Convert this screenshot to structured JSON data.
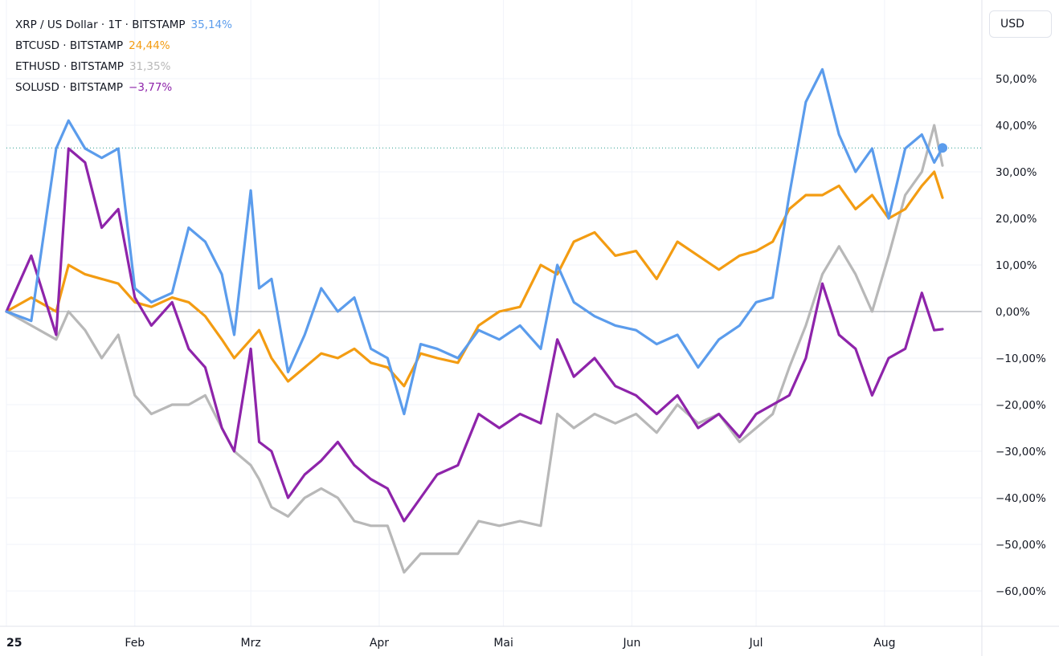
{
  "currency_button": "USD",
  "colors": {
    "xrp": "#5b9cec",
    "btc": "#f39c12",
    "eth": "#b8b8b8",
    "sol": "#8e24aa"
  },
  "legend": [
    {
      "label": "XRP / US Dollar · 1T · BITSTAMP",
      "value": "35,14%"
    },
    {
      "label": "BTCUSD · BITSTAMP",
      "value": "24,44%"
    },
    {
      "label": "ETHUSD · BITSTAMP",
      "value": "31,35%"
    },
    {
      "label": "SOLUSD · BITSTAMP",
      "value": "−3,77%"
    }
  ],
  "chart_data": {
    "type": "line",
    "x_ticks": [
      "25",
      "Feb",
      "Mrz",
      "Apr",
      "Mai",
      "Jun",
      "Jul",
      "Aug"
    ],
    "y_ticks": [
      "50,00%",
      "40,00%",
      "30,00%",
      "20,00%",
      "10,00%",
      "0,00%",
      "−10,00%",
      "−20,00%",
      "−30,00%",
      "−40,00%",
      "−50,00%",
      "−60,00%"
    ],
    "ylim": [
      -65,
      65
    ],
    "y_unit": "%",
    "grid": true,
    "legend_position": "top-left",
    "series": [
      {
        "name": "XRP / US Dollar · 1T · BITSTAMP",
        "x": [
          "2025-01-01",
          "2025-01-07",
          "2025-01-13",
          "2025-01-16",
          "2025-01-20",
          "2025-01-24",
          "2025-01-28",
          "2025-02-01",
          "2025-02-05",
          "2025-02-10",
          "2025-02-14",
          "2025-02-18",
          "2025-02-22",
          "2025-02-25",
          "2025-03-01",
          "2025-03-03",
          "2025-03-06",
          "2025-03-10",
          "2025-03-14",
          "2025-03-18",
          "2025-03-22",
          "2025-03-26",
          "2025-03-30",
          "2025-04-03",
          "2025-04-07",
          "2025-04-11",
          "2025-04-15",
          "2025-04-20",
          "2025-04-25",
          "2025-04-30",
          "2025-05-05",
          "2025-05-10",
          "2025-05-14",
          "2025-05-18",
          "2025-05-23",
          "2025-05-28",
          "2025-06-02",
          "2025-06-07",
          "2025-06-12",
          "2025-06-17",
          "2025-06-22",
          "2025-06-27",
          "2025-07-01",
          "2025-07-05",
          "2025-07-09",
          "2025-07-13",
          "2025-07-17",
          "2025-07-21",
          "2025-07-25",
          "2025-07-29",
          "2025-08-02",
          "2025-08-06",
          "2025-08-10",
          "2025-08-13",
          "2025-08-15"
        ],
        "y": [
          0,
          -2,
          35,
          41,
          35,
          33,
          35,
          5,
          2,
          4,
          18,
          15,
          8,
          -5,
          26,
          5,
          7,
          -13,
          -5,
          5,
          0,
          3,
          -8,
          -10,
          -22,
          -7,
          -8,
          -10,
          -4,
          -6,
          -3,
          -8,
          10,
          2,
          -1,
          -3,
          -4,
          -7,
          -5,
          -12,
          -6,
          -3,
          2,
          3,
          25,
          45,
          52,
          38,
          30,
          35,
          20,
          35,
          38,
          32,
          35.14
        ]
      },
      {
        "name": "BTCUSD · BITSTAMP",
        "x": [
          "2025-01-01",
          "2025-01-07",
          "2025-01-13",
          "2025-01-16",
          "2025-01-20",
          "2025-01-24",
          "2025-01-28",
          "2025-02-01",
          "2025-02-05",
          "2025-02-10",
          "2025-02-14",
          "2025-02-18",
          "2025-02-22",
          "2025-02-25",
          "2025-03-01",
          "2025-03-03",
          "2025-03-06",
          "2025-03-10",
          "2025-03-14",
          "2025-03-18",
          "2025-03-22",
          "2025-03-26",
          "2025-03-30",
          "2025-04-03",
          "2025-04-07",
          "2025-04-11",
          "2025-04-15",
          "2025-04-20",
          "2025-04-25",
          "2025-04-30",
          "2025-05-05",
          "2025-05-10",
          "2025-05-14",
          "2025-05-18",
          "2025-05-23",
          "2025-05-28",
          "2025-06-02",
          "2025-06-07",
          "2025-06-12",
          "2025-06-17",
          "2025-06-22",
          "2025-06-27",
          "2025-07-01",
          "2025-07-05",
          "2025-07-09",
          "2025-07-13",
          "2025-07-17",
          "2025-07-21",
          "2025-07-25",
          "2025-07-29",
          "2025-08-02",
          "2025-08-06",
          "2025-08-10",
          "2025-08-13",
          "2025-08-15"
        ],
        "y": [
          0,
          3,
          0,
          10,
          8,
          7,
          6,
          2,
          1,
          3,
          2,
          -1,
          -6,
          -10,
          -6,
          -4,
          -10,
          -15,
          -12,
          -9,
          -10,
          -8,
          -11,
          -12,
          -16,
          -9,
          -10,
          -11,
          -3,
          0,
          1,
          10,
          8,
          15,
          17,
          12,
          13,
          7,
          15,
          12,
          9,
          12,
          13,
          15,
          22,
          25,
          25,
          27,
          22,
          25,
          20,
          22,
          27,
          30,
          24.44
        ]
      },
      {
        "name": "ETHUSD · BITSTAMP",
        "x": [
          "2025-01-01",
          "2025-01-07",
          "2025-01-13",
          "2025-01-16",
          "2025-01-20",
          "2025-01-24",
          "2025-01-28",
          "2025-02-01",
          "2025-02-05",
          "2025-02-10",
          "2025-02-14",
          "2025-02-18",
          "2025-02-22",
          "2025-02-25",
          "2025-03-01",
          "2025-03-03",
          "2025-03-06",
          "2025-03-10",
          "2025-03-14",
          "2025-03-18",
          "2025-03-22",
          "2025-03-26",
          "2025-03-30",
          "2025-04-03",
          "2025-04-07",
          "2025-04-11",
          "2025-04-15",
          "2025-04-20",
          "2025-04-25",
          "2025-04-30",
          "2025-05-05",
          "2025-05-10",
          "2025-05-14",
          "2025-05-18",
          "2025-05-23",
          "2025-05-28",
          "2025-06-02",
          "2025-06-07",
          "2025-06-12",
          "2025-06-17",
          "2025-06-22",
          "2025-06-27",
          "2025-07-01",
          "2025-07-05",
          "2025-07-09",
          "2025-07-13",
          "2025-07-17",
          "2025-07-21",
          "2025-07-25",
          "2025-07-29",
          "2025-08-02",
          "2025-08-06",
          "2025-08-10",
          "2025-08-13",
          "2025-08-15"
        ],
        "y": [
          0,
          -3,
          -6,
          0,
          -4,
          -10,
          -5,
          -18,
          -22,
          -20,
          -20,
          -18,
          -25,
          -30,
          -33,
          -36,
          -42,
          -44,
          -40,
          -38,
          -40,
          -45,
          -46,
          -46,
          -56,
          -52,
          -52,
          -52,
          -45,
          -46,
          -45,
          -46,
          -22,
          -25,
          -22,
          -24,
          -22,
          -26,
          -20,
          -24,
          -22,
          -28,
          -25,
          -22,
          -12,
          -3,
          8,
          14,
          8,
          0,
          12,
          25,
          30,
          40,
          31.35
        ]
      },
      {
        "name": "SOLUSD · BITSTAMP",
        "x": [
          "2025-01-01",
          "2025-01-07",
          "2025-01-13",
          "2025-01-16",
          "2025-01-20",
          "2025-01-24",
          "2025-01-28",
          "2025-02-01",
          "2025-02-05",
          "2025-02-10",
          "2025-02-14",
          "2025-02-18",
          "2025-02-22",
          "2025-02-25",
          "2025-03-01",
          "2025-03-03",
          "2025-03-06",
          "2025-03-10",
          "2025-03-14",
          "2025-03-18",
          "2025-03-22",
          "2025-03-26",
          "2025-03-30",
          "2025-04-03",
          "2025-04-07",
          "2025-04-11",
          "2025-04-15",
          "2025-04-20",
          "2025-04-25",
          "2025-04-30",
          "2025-05-05",
          "2025-05-10",
          "2025-05-14",
          "2025-05-18",
          "2025-05-23",
          "2025-05-28",
          "2025-06-02",
          "2025-06-07",
          "2025-06-12",
          "2025-06-17",
          "2025-06-22",
          "2025-06-27",
          "2025-07-01",
          "2025-07-05",
          "2025-07-09",
          "2025-07-13",
          "2025-07-17",
          "2025-07-21",
          "2025-07-25",
          "2025-07-29",
          "2025-08-02",
          "2025-08-06",
          "2025-08-10",
          "2025-08-13",
          "2025-08-15"
        ],
        "y": [
          0,
          12,
          -5,
          35,
          32,
          18,
          22,
          3,
          -3,
          2,
          -8,
          -12,
          -25,
          -30,
          -8,
          -28,
          -30,
          -40,
          -35,
          -32,
          -28,
          -33,
          -36,
          -38,
          -45,
          -40,
          -35,
          -33,
          -22,
          -25,
          -22,
          -24,
          -6,
          -14,
          -10,
          -16,
          -18,
          -22,
          -18,
          -25,
          -22,
          -27,
          -22,
          -20,
          -18,
          -10,
          6,
          -5,
          -8,
          -18,
          -10,
          -8,
          4,
          -4,
          -3.77
        ]
      }
    ]
  }
}
